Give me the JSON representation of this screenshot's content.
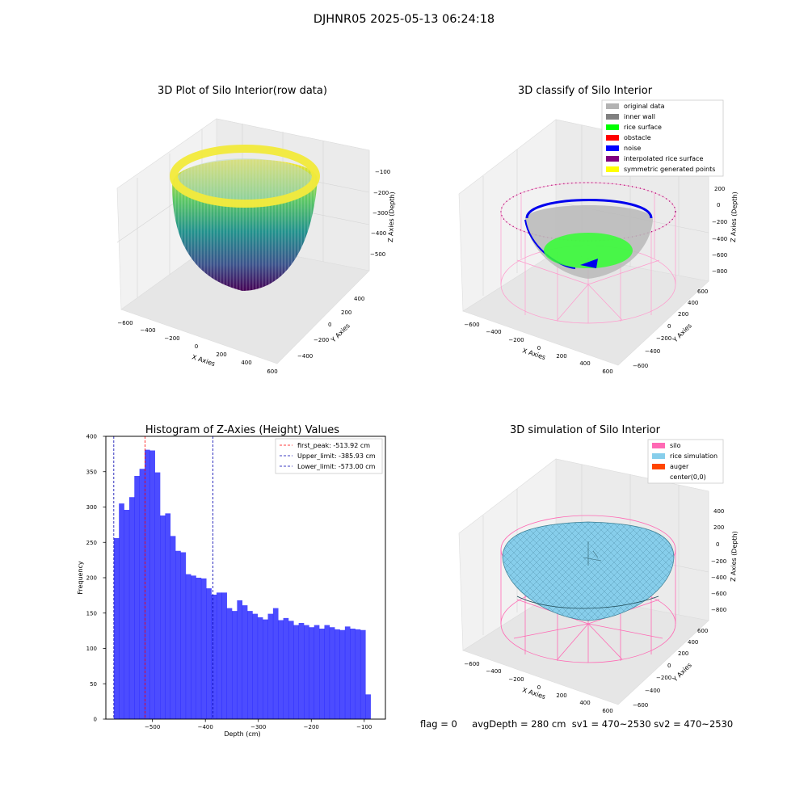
{
  "figure": {
    "suptitle": "DJHNR05 2025-05-13 06:24:18",
    "footer": {
      "flag": "flag = 0",
      "avg_depth": "avgDepth = 280 cm",
      "sv1": "sv1 = 470~2530",
      "sv2": "sv2 = 470~2530"
    }
  },
  "panels": {
    "raw": {
      "title": "3D Plot of Silo Interior(row data)",
      "xlabel": "X Axies",
      "ylabel": "Y Axies",
      "zlabel": "Z Axies (Depth)",
      "xticks": [
        "−600",
        "−400",
        "−200",
        "0",
        "200",
        "400",
        "600"
      ],
      "yticks": [
        "−400",
        "−200",
        "0",
        "200",
        "400"
      ],
      "zticks": [
        "−100",
        "−200",
        "−300",
        "−400",
        "−500"
      ],
      "colormap": "viridis"
    },
    "classify": {
      "title": "3D classify of Silo Interior",
      "xlabel": "X Axies",
      "ylabel": "Y Axies",
      "zlabel": "Z Axies (Depth)",
      "xticks": [
        "−600",
        "−400",
        "−200",
        "0",
        "200",
        "400",
        "600"
      ],
      "yticks": [
        "−600",
        "−400",
        "−200",
        "0",
        "200",
        "400",
        "600"
      ],
      "zticks": [
        "200",
        "0",
        "−200",
        "−400",
        "−600",
        "−800"
      ],
      "legend": [
        {
          "label": "original data",
          "color": "#b3b3b3"
        },
        {
          "label": "inner wall",
          "color": "#808080"
        },
        {
          "label": "rice surface",
          "color": "#00ff00"
        },
        {
          "label": "obstacle",
          "color": "#ff0000"
        },
        {
          "label": "noise",
          "color": "#0000ff"
        },
        {
          "label": "interpolated rice surface",
          "color": "#800080"
        },
        {
          "label": "symmetric generated points",
          "color": "#ffff00"
        }
      ]
    },
    "simulation": {
      "title": "3D simulation of Silo Interior",
      "xlabel": "X Axies",
      "ylabel": "Y Axies",
      "zlabel": "Z Axies (Depth)",
      "xticks": [
        "−600",
        "−400",
        "−200",
        "0",
        "200",
        "400",
        "600"
      ],
      "yticks": [
        "−600",
        "−400",
        "−200",
        "0",
        "200",
        "400",
        "600"
      ],
      "zticks": [
        "400",
        "200",
        "0",
        "−200",
        "−400",
        "−600",
        "−800"
      ],
      "legend": [
        {
          "label": "silo",
          "color": "#ff69b4"
        },
        {
          "label": "rice simulation",
          "color": "#87ceeb"
        },
        {
          "label": "auger",
          "color": "#ff4500"
        },
        {
          "label": "center(0,0)",
          "color": "#ffffff"
        }
      ]
    }
  },
  "chart_data": {
    "type": "bar",
    "title": "Histogram of Z-Axies (Height) Values",
    "xlabel": "Depth (cm)",
    "ylabel": "Frequency",
    "xlim": [
      -588,
      -60
    ],
    "ylim": [
      0,
      400
    ],
    "xticks": [
      -500,
      -400,
      -300,
      -200,
      -100
    ],
    "xtick_labels": [
      "−500",
      "−400",
      "−300",
      "−200",
      "−100"
    ],
    "yticks": [
      0,
      50,
      100,
      150,
      200,
      250,
      300,
      350,
      400
    ],
    "bar_color": "#0000ff",
    "bar_start": -573,
    "bar_width": 9.7,
    "values": [
      256,
      305,
      296,
      314,
      344,
      354,
      381,
      380,
      349,
      288,
      291,
      259,
      238,
      236,
      205,
      203,
      200,
      199,
      185,
      176,
      179,
      179,
      157,
      153,
      168,
      161,
      153,
      149,
      144,
      141,
      149,
      157,
      140,
      143,
      139,
      133,
      136,
      133,
      130,
      133,
      128,
      133,
      130,
      127,
      126,
      131,
      128,
      127,
      126,
      35
    ],
    "vlines": [
      {
        "x": -513.92,
        "color": "#ff0000",
        "label": "first_peak: -513.92 cm"
      },
      {
        "x": -385.93,
        "color": "#0000b0",
        "label": "Upper_limit: -385.93 cm"
      },
      {
        "x": -573.0,
        "color": "#0000b0",
        "label": "Lower_limit: -573.00 cm"
      }
    ],
    "legend_position": "top-right"
  }
}
